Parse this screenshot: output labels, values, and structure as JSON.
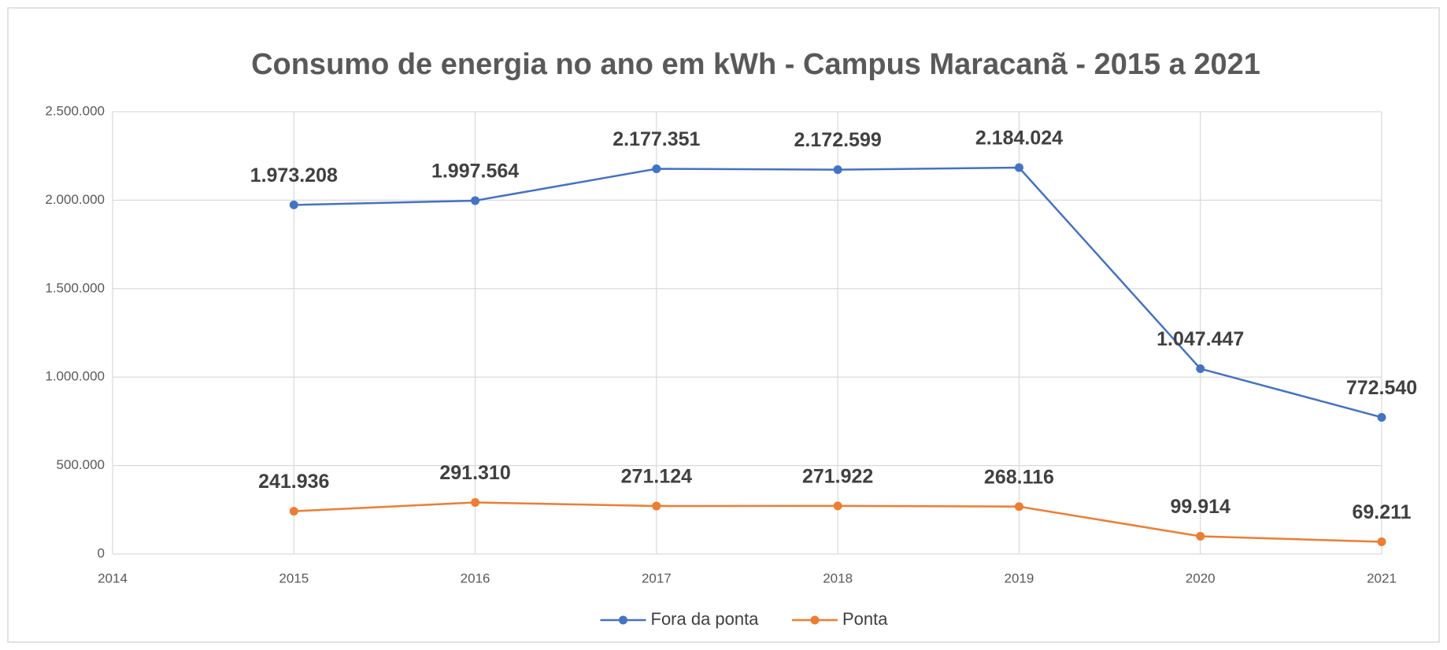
{
  "chart_data": {
    "type": "line",
    "title": "Consumo de energia no ano em kWh - Campus Maracanã - 2015 a 2021",
    "x": [
      2015,
      2016,
      2017,
      2018,
      2019,
      2020,
      2021
    ],
    "series": [
      {
        "name": "Fora da ponta",
        "color": "#4472c4",
        "values": [
          1973208,
          1997564,
          2177351,
          2172599,
          2184024,
          1047447,
          772540
        ],
        "value_labels": [
          "1.973.208",
          "1.997.564",
          "2.177.351",
          "2.172.599",
          "2.184.024",
          "1.047.447",
          "772.540"
        ]
      },
      {
        "name": "Ponta",
        "color": "#ed7d31",
        "values": [
          241936,
          291310,
          271124,
          271922,
          268116,
          99914,
          69211
        ],
        "value_labels": [
          "241.936",
          "291.310",
          "271.124",
          "271.922",
          "268.116",
          "99.914",
          "69.211"
        ]
      }
    ],
    "xlim": [
      2014,
      2021
    ],
    "xticks": [
      2014,
      2015,
      2016,
      2017,
      2018,
      2019,
      2020,
      2021
    ],
    "ylim": [
      0,
      2500000
    ],
    "yticks": [
      0,
      {
        "value": 500000,
        "label": "500.000"
      },
      {
        "value": 1000000,
        "label": "1.000.000"
      },
      {
        "value": 1500000,
        "label": "1.500.000"
      },
      {
        "value": 2000000,
        "label": "2.000.000"
      },
      {
        "value": 2500000,
        "label": "2.500.000"
      }
    ],
    "grid": true,
    "legend": "bottom"
  }
}
